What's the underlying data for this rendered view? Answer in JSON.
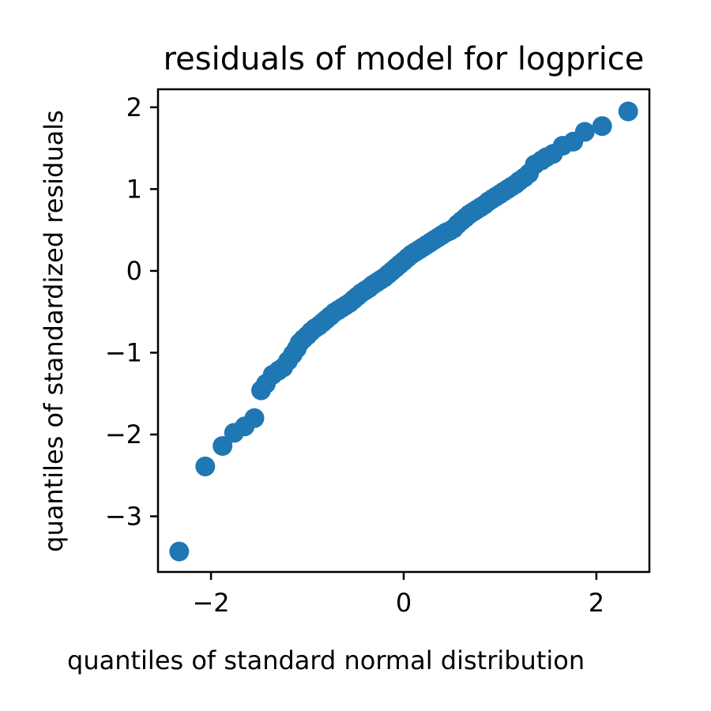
{
  "chart_data": {
    "type": "scatter",
    "title": "residuals of model for logprice",
    "xlabel": "quantiles of standard normal distribution",
    "ylabel": "quantiles of standardized residuals",
    "xlim": [
      -2.55,
      2.55
    ],
    "ylim": [
      -3.68,
      2.22
    ],
    "xticks": [
      {
        "value": -2,
        "label": "−2"
      },
      {
        "value": 0,
        "label": "0"
      },
      {
        "value": 2,
        "label": "2"
      }
    ],
    "yticks": [
      {
        "value": 2,
        "label": "2"
      },
      {
        "value": 1,
        "label": "1"
      },
      {
        "value": 0,
        "label": "0"
      },
      {
        "value": -1,
        "label": "−1"
      },
      {
        "value": -2,
        "label": "−2"
      },
      {
        "value": -3,
        "label": "−3"
      }
    ],
    "grid": false,
    "marker_color": "#1f77b4",
    "series": [
      {
        "name": "standardized residuals",
        "x": [
          -2.33,
          -2.06,
          -1.88,
          -1.76,
          -1.65,
          -1.55,
          -1.48,
          -1.43,
          -1.36,
          -1.3,
          -1.25,
          -1.2,
          -1.15,
          -1.11,
          -1.08,
          -1.04,
          -1.0,
          -0.96,
          -0.92,
          -0.88,
          -0.84,
          -0.8,
          -0.76,
          -0.72,
          -0.68,
          -0.64,
          -0.6,
          -0.56,
          -0.52,
          -0.48,
          -0.44,
          -0.4,
          -0.36,
          -0.32,
          -0.28,
          -0.24,
          -0.2,
          -0.16,
          -0.12,
          -0.08,
          -0.04,
          0.0,
          0.04,
          0.08,
          0.12,
          0.16,
          0.2,
          0.24,
          0.28,
          0.32,
          0.36,
          0.4,
          0.44,
          0.48,
          0.52,
          0.56,
          0.6,
          0.64,
          0.68,
          0.72,
          0.76,
          0.8,
          0.84,
          0.88,
          0.92,
          0.96,
          1.0,
          1.04,
          1.08,
          1.12,
          1.16,
          1.2,
          1.25,
          1.3,
          1.36,
          1.43,
          1.48,
          1.55,
          1.65,
          1.76,
          1.88,
          2.06,
          2.33
        ],
        "y": [
          -3.43,
          -2.39,
          -2.14,
          -1.98,
          -1.9,
          -1.8,
          -1.46,
          -1.38,
          -1.27,
          -1.22,
          -1.18,
          -1.1,
          -1.02,
          -0.95,
          -0.88,
          -0.83,
          -0.79,
          -0.74,
          -0.7,
          -0.67,
          -0.63,
          -0.59,
          -0.55,
          -0.51,
          -0.48,
          -0.45,
          -0.42,
          -0.39,
          -0.35,
          -0.31,
          -0.27,
          -0.24,
          -0.21,
          -0.17,
          -0.14,
          -0.11,
          -0.08,
          -0.04,
          0.0,
          0.04,
          0.08,
          0.12,
          0.16,
          0.2,
          0.23,
          0.26,
          0.29,
          0.32,
          0.35,
          0.38,
          0.41,
          0.44,
          0.47,
          0.49,
          0.52,
          0.57,
          0.61,
          0.65,
          0.69,
          0.72,
          0.75,
          0.78,
          0.81,
          0.85,
          0.88,
          0.91,
          0.94,
          0.97,
          1.0,
          1.03,
          1.06,
          1.1,
          1.14,
          1.19,
          1.3,
          1.35,
          1.39,
          1.43,
          1.53,
          1.58,
          1.7,
          1.77,
          1.95
        ]
      }
    ]
  }
}
